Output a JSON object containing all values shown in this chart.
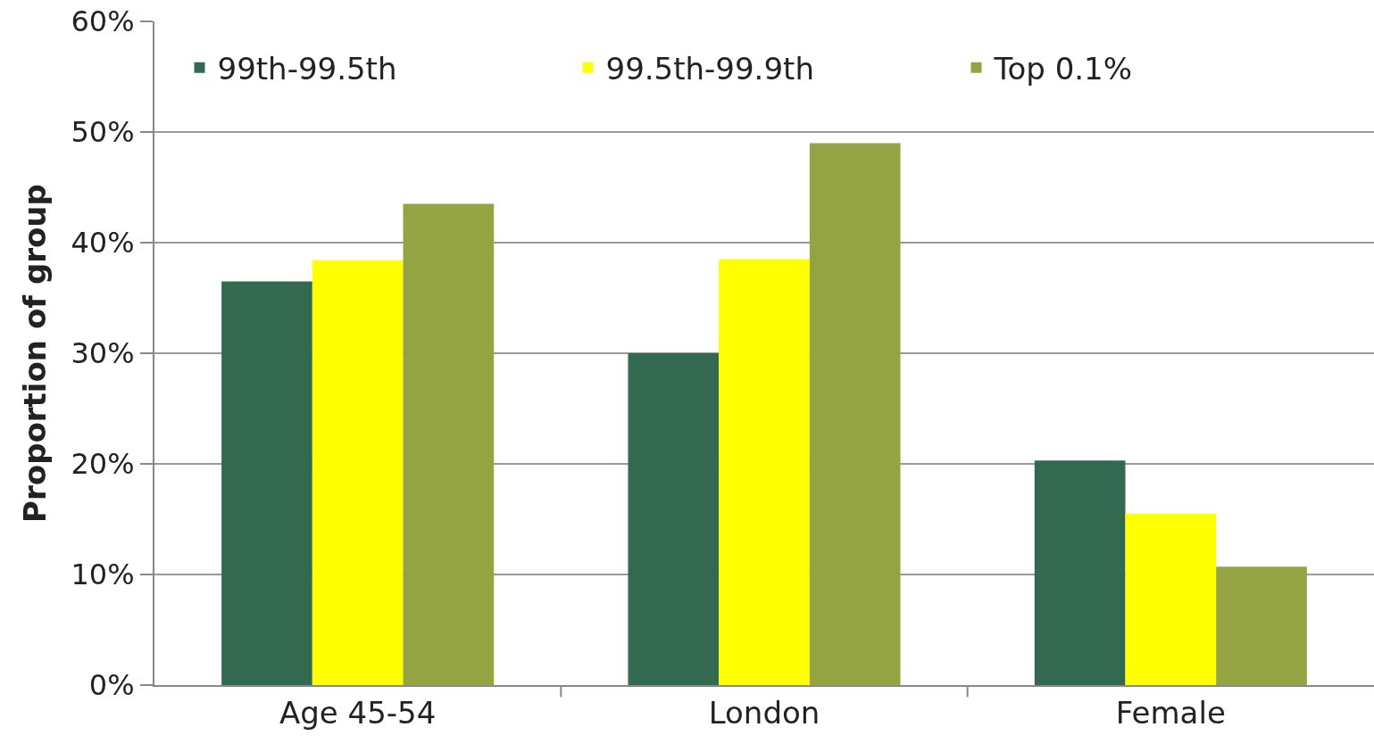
{
  "chart_data": {
    "type": "bar",
    "ylabel": "Proportion of group",
    "categories": [
      "Age 45-54",
      "London",
      "Female"
    ],
    "series": [
      {
        "name": "99th-99.5th",
        "color": "#336950",
        "values": [
          36.5,
          30.0,
          20.3
        ]
      },
      {
        "name": "99.5th-99.9th",
        "color": "#ffff00",
        "values": [
          38.4,
          38.5,
          15.5
        ]
      },
      {
        "name": "Top 0.1%",
        "color": "#95a442",
        "values": [
          43.5,
          49.0,
          10.7
        ]
      }
    ],
    "ylim": [
      0,
      60
    ],
    "yticks": [
      {
        "value": 0,
        "label": "0%"
      },
      {
        "value": 10,
        "label": "10%"
      },
      {
        "value": 20,
        "label": "20%"
      },
      {
        "value": 30,
        "label": "30%"
      },
      {
        "value": 40,
        "label": "40%"
      },
      {
        "value": 50,
        "label": "50%"
      },
      {
        "value": 60,
        "label": "60%"
      }
    ],
    "grid": "y",
    "legend": "top"
  }
}
